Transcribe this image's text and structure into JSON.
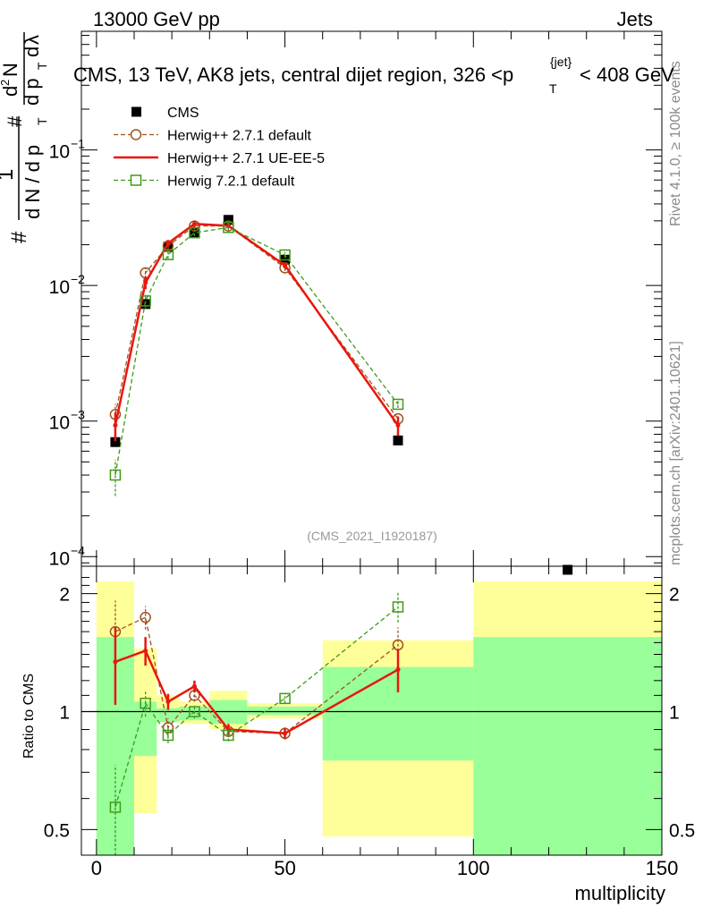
{
  "header": {
    "left": "13000 GeV pp",
    "right": "Jets"
  },
  "side_labels": {
    "rivet": "Rivet 4.1.0, ≥ 100k events",
    "mcplots": "mcplots.cern.ch [arXiv:2401.10621]"
  },
  "chart_data": [
    {
      "type": "line",
      "scale": "log",
      "title_prefix": "CMS, 13 TeV, AK8 jets, central dijet region, 326 <",
      "title_var": "p",
      "title_sub": "T",
      "title_sup": "{jet}",
      "title_suffix": "< 408 GeV",
      "watermark": "(CMS_2021_I1920187)",
      "ylabel": "1/N dN/dp_T dλ",
      "ylabel_parts": [
        "#",
        "1",
        "d N / d p",
        "T",
        "#",
        "d",
        "2",
        "N",
        "d p",
        "T",
        "d",
        "λ"
      ],
      "xlim": [
        -4,
        150
      ],
      "ylim": [
        8.5e-05,
        0.75
      ],
      "y_tick_labels": [
        {
          "value": 0.1,
          "base": "10",
          "exp": "−1"
        },
        {
          "value": 0.01,
          "base": "10",
          "exp": "−2"
        },
        {
          "value": 0.001,
          "base": "10",
          "exp": "−3"
        },
        {
          "value": 0.0001,
          "base": "10",
          "exp": "−4"
        }
      ],
      "legend": [
        {
          "label": "CMS",
          "key": "cms"
        },
        {
          "label": "Herwig++ 2.7.1 default",
          "key": "hpp_default"
        },
        {
          "label": "Herwig++ 2.7.1 UE-EE-5",
          "key": "hpp_ueee5"
        },
        {
          "label": "Herwig 7.2.1 default",
          "key": "h7_default"
        }
      ],
      "series": [
        {
          "name": "CMS",
          "key": "cms",
          "color": "#000000",
          "x": [
            5,
            13,
            19,
            26,
            35,
            50,
            80,
            125
          ],
          "y": [
            0.0007,
            0.0073,
            0.0193,
            0.0245,
            0.0305,
            0.0155,
            0.00072,
            8e-05
          ]
        },
        {
          "name": "Herwig++ 2.7.1 default",
          "key": "hpp_default",
          "color": "#A0521E",
          "x": [
            5,
            13,
            19,
            26,
            35,
            50,
            80
          ],
          "y": [
            0.00112,
            0.0124,
            0.0196,
            0.0275,
            0.0275,
            0.0135,
            0.00104
          ],
          "yerr": [
            0.00022,
            0.0011,
            0.0012,
            0.0015,
            0.0012,
            0.0007,
            8e-05
          ]
        },
        {
          "name": "Herwig++ 2.7.1 UE-EE-5",
          "key": "hpp_ueee5",
          "color": "#E8170E",
          "x": [
            5,
            13,
            19,
            26,
            35,
            50,
            80
          ],
          "y": [
            0.00093,
            0.0105,
            0.0205,
            0.0285,
            0.0276,
            0.0141,
            0.00093
          ],
          "yerr": [
            0.00022,
            0.0011,
            0.0012,
            0.0015,
            0.0012,
            0.0007,
            0.00015
          ]
        },
        {
          "name": "Herwig 7.2.1 default",
          "key": "h7_default",
          "color": "#3E9A1A",
          "x": [
            5,
            13,
            19,
            26,
            35,
            50,
            80
          ],
          "y": [
            0.0004,
            0.0077,
            0.0169,
            0.0245,
            0.0268,
            0.0168,
            0.00133
          ],
          "yerr": [
            0.00012,
            0.0009,
            0.0011,
            0.0014,
            0.0012,
            0.0008,
            8e-05
          ]
        }
      ]
    },
    {
      "type": "line",
      "scale": "log",
      "ylabel": "Ratio to CMS",
      "xlabel": "multiplicity",
      "xlim": [
        -4,
        150
      ],
      "ylim": [
        0.43,
        2.35
      ],
      "x_ticks": [
        0,
        50,
        100,
        150
      ],
      "y_ticks": [
        0.5,
        1,
        2
      ],
      "y_tick_labels": [
        "0.5",
        "1",
        "2"
      ],
      "uncertainty_bands": [
        {
          "x0": 0,
          "x1": 10,
          "inner": [
            0.38,
            1.55
          ],
          "outer": [
            0.38,
            2.15
          ]
        },
        {
          "x0": 10,
          "x1": 16,
          "inner": [
            0.77,
            1.06
          ],
          "outer": [
            0.55,
            1.45
          ]
        },
        {
          "x0": 16,
          "x1": 22,
          "inner": [
            0.94,
            1.02
          ],
          "outer": [
            0.94,
            1.1
          ]
        },
        {
          "x0": 22,
          "x1": 30,
          "inner": [
            0.95,
            1.03
          ],
          "outer": [
            0.93,
            1.06
          ]
        },
        {
          "x0": 30,
          "x1": 40,
          "inner": [
            0.93,
            1.07
          ],
          "outer": [
            0.9,
            1.13
          ]
        },
        {
          "x0": 40,
          "x1": 60,
          "inner": [
            0.98,
            1.03
          ],
          "outer": [
            0.96,
            1.05
          ]
        },
        {
          "x0": 60,
          "x1": 100,
          "inner": [
            0.75,
            1.3
          ],
          "outer": [
            0.48,
            1.52
          ]
        },
        {
          "x0": 100,
          "x1": 150,
          "inner": [
            0.4,
            1.55
          ],
          "outer": [
            0.38,
            2.15
          ]
        }
      ],
      "series": [
        {
          "name": "Herwig++ 2.7.1 default",
          "key": "hpp_default",
          "color": "#A0521E",
          "x": [
            5,
            13,
            19,
            26,
            35,
            50,
            80
          ],
          "y": [
            1.6,
            1.74,
            0.91,
            1.1,
            0.89,
            0.88,
            1.48
          ],
          "yerr": [
            0.32,
            0.12,
            0.05,
            0.04,
            0.03,
            0.03,
            0.16
          ]
        },
        {
          "name": "Herwig++ 2.7.1 UE-EE-5",
          "key": "hpp_ueee5",
          "color": "#E8170E",
          "x": [
            5,
            13,
            19,
            26,
            35,
            50,
            80
          ],
          "y": [
            1.34,
            1.43,
            1.06,
            1.16,
            0.9,
            0.88,
            1.28
          ],
          "yerr": [
            0.3,
            0.12,
            0.05,
            0.04,
            0.03,
            0.03,
            0.16
          ]
        },
        {
          "name": "Herwig 7.2.1 default",
          "key": "h7_default",
          "color": "#3E9A1A",
          "x": [
            5,
            13,
            19,
            26,
            35,
            50,
            80
          ],
          "y": [
            0.57,
            1.05,
            0.87,
            1.0,
            0.87,
            1.08,
            1.85
          ],
          "yerr": [
            0.16,
            0.08,
            0.04,
            0.04,
            0.03,
            0.03,
            0.16
          ]
        }
      ]
    }
  ]
}
